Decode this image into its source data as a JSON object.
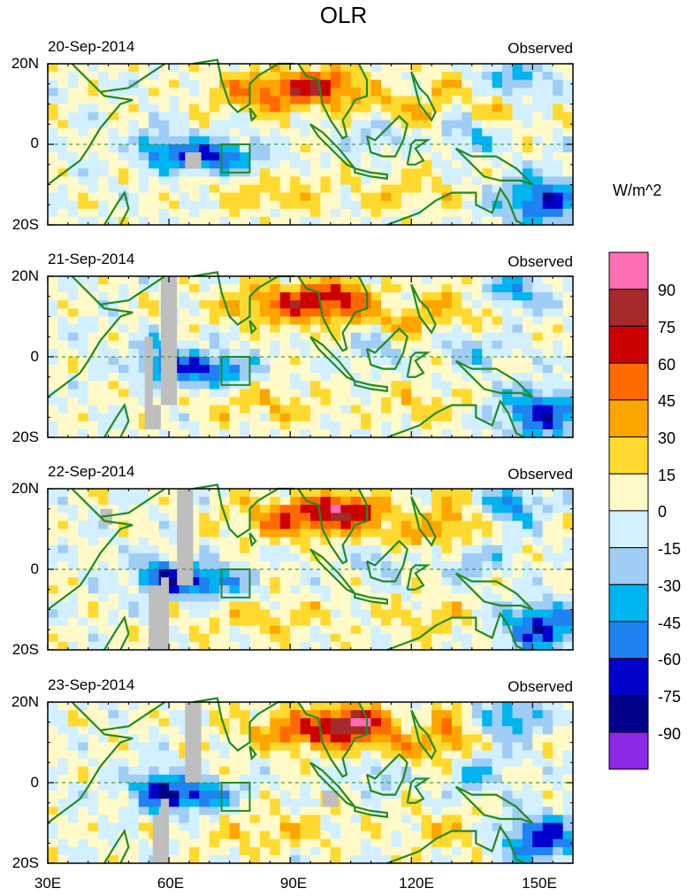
{
  "chart_data": {
    "type": "heatmap",
    "title": "OLR",
    "units": "W/m^2",
    "source_label": "Observed",
    "panels": [
      {
        "date": "20-Sep-2014",
        "label": "Observed"
      },
      {
        "date": "21-Sep-2014",
        "label": "Observed"
      },
      {
        "date": "22-Sep-2014",
        "label": "Observed"
      },
      {
        "date": "23-Sep-2014",
        "label": "Observed"
      }
    ],
    "x_axis": {
      "range": [
        30,
        160
      ],
      "ticks": [
        30,
        60,
        90,
        120,
        150
      ],
      "tick_labels": [
        "30E",
        "60E",
        "90E",
        "120E",
        "150E"
      ]
    },
    "y_axis": {
      "range": [
        -20,
        20
      ],
      "ticks": [
        20,
        0,
        -20
      ],
      "tick_labels": [
        "20N",
        "0",
        "20S"
      ]
    },
    "colorbar": {
      "labels": [
        "90",
        "75",
        "60",
        "45",
        "30",
        "15",
        "0",
        "-15",
        "-30",
        "-45",
        "-60",
        "-75",
        "-90"
      ],
      "colors": [
        "#ff6eb4",
        "#a52a2a",
        "#cd0000",
        "#ff6a00",
        "#ffa500",
        "#ffd92e",
        "#fffac8",
        "#d2f0ff",
        "#a0cdf5",
        "#00b4f0",
        "#1e82f0",
        "#0000cd",
        "#00008b",
        "#8c28e6"
      ]
    },
    "colors": {
      "coast": "#228b22",
      "missing": "#bebebe",
      "equator": "#228b22"
    }
  }
}
